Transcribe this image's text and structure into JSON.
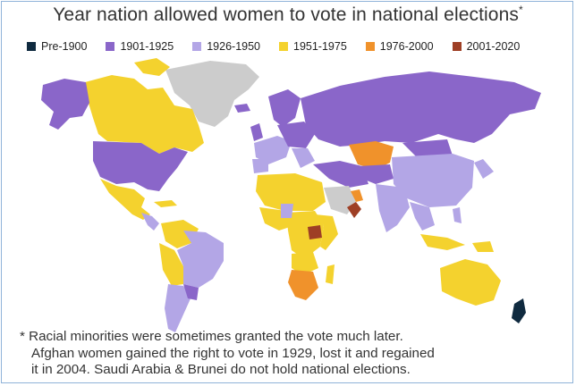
{
  "title": "Year nation allowed women to vote in national elections",
  "title_marker": "*",
  "legend": [
    {
      "label": "Pre-1900",
      "color": "#0f2a3f"
    },
    {
      "label": "1901-1925",
      "color": "#8a66c9"
    },
    {
      "label": "1926-1950",
      "color": "#b3a6e6"
    },
    {
      "label": "1951-1975",
      "color": "#f4d22e"
    },
    {
      "label": "1976-2000",
      "color": "#f0922b"
    },
    {
      "label": "2001-2020",
      "color": "#9e3f25"
    }
  ],
  "no_data_color": "#cccccc",
  "footnote": {
    "line1": "* Racial minorities were sometimes granted the vote much later.",
    "line2": "Afghan women gained the right to vote in 1929, lost it and regained",
    "line3": "it in 2004. Saudi Arabia & Brunei do not hold national elections."
  }
}
